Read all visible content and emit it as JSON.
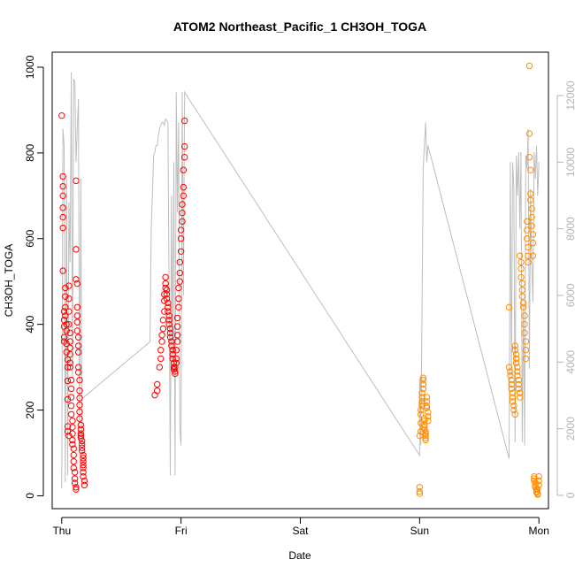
{
  "chart_data": {
    "type": "scatter",
    "title": "ATOM2 Northeast_Pacific_1 CH3OH_TOGA",
    "xlabel": "Date",
    "ylabel": "CH3OH_TOGA",
    "x_unit": "days",
    "xlim": [
      -0.08,
      4.08
    ],
    "ylim": [
      -30,
      1035
    ],
    "x_ticks": [
      {
        "value": 0,
        "label": "Thu"
      },
      {
        "value": 1,
        "label": "Fri"
      },
      {
        "value": 2,
        "label": "Sat"
      },
      {
        "value": 3,
        "label": "Sun"
      },
      {
        "value": 4,
        "label": "Mon"
      }
    ],
    "y_ticks": [
      0,
      200,
      400,
      600,
      800,
      1000
    ],
    "y2_lim": [
      -400,
      13300
    ],
    "y2_ticks": [
      0,
      2000,
      4000,
      6000,
      8000,
      10000,
      12000
    ],
    "grid": false,
    "colors": {
      "series_red": "#ff0000",
      "series_orange": "#ff8c00",
      "altitude_line": "#bebebe"
    },
    "series": [
      {
        "color": "#ff0000",
        "x": [
          0.0,
          0.01,
          0.01,
          0.01,
          0.01,
          0.01,
          0.01,
          0.01,
          0.02,
          0.02,
          0.02,
          0.02,
          0.02,
          0.03,
          0.03,
          0.03,
          0.03,
          0.04,
          0.04,
          0.04,
          0.04,
          0.05,
          0.05,
          0.05,
          0.05,
          0.05,
          0.05,
          0.06,
          0.06,
          0.06,
          0.06,
          0.06,
          0.07,
          0.07,
          0.07,
          0.07,
          0.07,
          0.07,
          0.08,
          0.08,
          0.08,
          0.08,
          0.08,
          0.09,
          0.09,
          0.09,
          0.09,
          0.09,
          0.1,
          0.1,
          0.1,
          0.1,
          0.11,
          0.11,
          0.11,
          0.12,
          0.12,
          0.12,
          0.12,
          0.12,
          0.13,
          0.13,
          0.13,
          0.13,
          0.13,
          0.14,
          0.14,
          0.14,
          0.14,
          0.14,
          0.15,
          0.15,
          0.15,
          0.15,
          0.15,
          0.15,
          0.16,
          0.16,
          0.16,
          0.16,
          0.16,
          0.17,
          0.17,
          0.17,
          0.17,
          0.18,
          0.18,
          0.18,
          0.18,
          0.18,
          0.18,
          0.18,
          0.19,
          0.19,
          0.78,
          0.8,
          0.8,
          0.82,
          0.83,
          0.83,
          0.84,
          0.84,
          0.85,
          0.85,
          0.86,
          0.86,
          0.86,
          0.87,
          0.87,
          0.87,
          0.88,
          0.88,
          0.88,
          0.89,
          0.89,
          0.89,
          0.9,
          0.9,
          0.9,
          0.91,
          0.91,
          0.91,
          0.92,
          0.92,
          0.93,
          0.93,
          0.93,
          0.94,
          0.94,
          0.94,
          0.95,
          0.95,
          0.95,
          0.96,
          0.96,
          0.96,
          0.97,
          0.97,
          0.97,
          0.97,
          0.98,
          0.98,
          0.98,
          0.99,
          0.99,
          0.99,
          1.0,
          1.0,
          1.0,
          1.01,
          1.01,
          1.01,
          1.02,
          1.02,
          1.02,
          1.03,
          1.03,
          1.03
        ],
        "y": [
          887,
          745,
          722,
          700,
          672,
          650,
          625,
          525,
          410,
          430,
          395,
          370,
          360,
          485,
          465,
          440,
          420,
          400,
          385,
          355,
          335,
          318,
          300,
          268,
          225,
          162,
          150,
          140,
          490,
          460,
          430,
          400,
          380,
          360,
          345,
          330,
          310,
          300,
          270,
          250,
          230,
          210,
          190,
          175,
          160,
          145,
          130,
          120,
          110,
          95,
          80,
          65,
          55,
          40,
          30,
          20,
          15,
          735,
          575,
          505,
          495,
          440,
          420,
          405,
          385,
          370,
          350,
          335,
          300,
          288,
          270,
          245,
          228,
          212,
          196,
          180,
          165,
          155,
          145,
          140,
          135,
          128,
          120,
          112,
          105,
          95,
          88,
          80,
          72,
          65,
          55,
          45,
          35,
          25,
          235,
          245,
          260,
          300,
          320,
          340,
          360,
          375,
          390,
          410,
          430,
          455,
          470,
          485,
          510,
          495,
          480,
          470,
          460,
          450,
          440,
          430,
          420,
          410,
          400,
          390,
          380,
          370,
          360,
          350,
          340,
          330,
          320,
          310,
          300,
          295,
          290,
          285,
          300,
          310,
          320,
          340,
          360,
          375,
          395,
          415,
          440,
          460,
          485,
          500,
          520,
          545,
          570,
          600,
          620,
          640,
          660,
          680,
          700,
          720,
          760,
          790,
          815,
          875
        ],
        "note": "y values estimated from scatter"
      },
      {
        "color": "#ff8c00",
        "x": [
          3.0,
          3.0,
          3.0,
          3.0,
          3.01,
          3.01,
          3.01,
          3.01,
          3.02,
          3.02,
          3.02,
          3.02,
          3.02,
          3.03,
          3.03,
          3.03,
          3.03,
          3.04,
          3.04,
          3.04,
          3.04,
          3.04,
          3.05,
          3.05,
          3.05,
          3.05,
          3.05,
          3.06,
          3.06,
          3.06,
          3.06,
          3.07,
          3.07,
          3.07,
          3.75,
          3.75,
          3.76,
          3.76,
          3.77,
          3.77,
          3.77,
          3.78,
          3.78,
          3.78,
          3.79,
          3.79,
          3.8,
          3.8,
          3.8,
          3.81,
          3.81,
          3.81,
          3.82,
          3.82,
          3.82,
          3.83,
          3.83,
          3.83,
          3.84,
          3.84,
          3.84,
          3.85,
          3.85,
          3.85,
          3.86,
          3.86,
          3.86,
          3.87,
          3.87,
          3.88,
          3.88,
          3.88,
          3.89,
          3.89,
          3.89,
          3.9,
          3.9,
          3.9,
          3.91,
          3.91,
          3.91,
          3.92,
          3.92,
          3.92,
          3.93,
          3.93,
          3.93,
          3.94,
          3.94,
          3.94,
          3.95,
          3.95,
          3.95,
          3.96,
          3.96,
          3.96,
          3.97,
          3.97,
          3.97,
          3.98,
          3.98,
          3.98,
          3.99,
          3.99,
          3.99,
          4.0,
          4.0,
          4.0
        ],
        "y": [
          5,
          10,
          20,
          140,
          150,
          170,
          190,
          200,
          210,
          215,
          220,
          230,
          240,
          250,
          260,
          270,
          275,
          180,
          175,
          165,
          160,
          155,
          150,
          145,
          140,
          135,
          130,
          230,
          220,
          210,
          205,
          195,
          185,
          175,
          440,
          300,
          290,
          280,
          270,
          260,
          250,
          240,
          230,
          220,
          210,
          200,
          190,
          350,
          340,
          330,
          320,
          310,
          300,
          290,
          280,
          270,
          260,
          250,
          240,
          230,
          560,
          545,
          530,
          510,
          495,
          480,
          465,
          450,
          440,
          420,
          400,
          380,
          360,
          340,
          320,
          640,
          620,
          600,
          580,
          560,
          545,
          1003,
          845,
          790,
          760,
          705,
          690,
          670,
          650,
          630,
          610,
          590,
          560,
          45,
          40,
          35,
          30,
          25,
          20,
          15,
          10,
          8,
          5,
          3,
          15,
          25,
          35,
          45
        ],
        "note": "y values estimated from scatter"
      }
    ],
    "altitude_line": {
      "color": "#bebebe",
      "axis": "right",
      "x": [
        0.0,
        0.01,
        0.02,
        0.03,
        0.04,
        0.05,
        0.06,
        0.07,
        0.08,
        0.09,
        0.1,
        0.11,
        0.12,
        0.13,
        0.14,
        0.15,
        0.16,
        0.17,
        0.17,
        0.18,
        0.19,
        0.2,
        0.21,
        0.22,
        0.23,
        0.24,
        0.25,
        0.26,
        0.27,
        0.28,
        0.29,
        0.3,
        0.31,
        0.32,
        0.33,
        0.34,
        0.35,
        0.36,
        0.37,
        0.38,
        0.39,
        0.4,
        0.41,
        0.42,
        0.43,
        0.44,
        0.45,
        0.46,
        0.47,
        0.48,
        0.49,
        0.5,
        0.51,
        0.52,
        0.53,
        0.54,
        0.55,
        0.56,
        0.57,
        0.58,
        0.59,
        0.6,
        0.61,
        0.62,
        0.63,
        0.64,
        0.65,
        0.66,
        0.67,
        0.68,
        0.69,
        0.7,
        0.71,
        0.72,
        0.73,
        0.74,
        0.75,
        0.76,
        0.77,
        0.78,
        0.79,
        0.8,
        0.81,
        0.82,
        0.83,
        0.84,
        0.85,
        0.86,
        0.87,
        0.88,
        0.89,
        0.9,
        0.91,
        0.92,
        0.93,
        0.94,
        0.95,
        0.96,
        0.97,
        0.98,
        0.99,
        1.0,
        1.01,
        1.02,
        1.03,
        3.0,
        3.0,
        3.01,
        3.02,
        3.03,
        3.04,
        3.05,
        3.06,
        3.07,
        3.75,
        3.76,
        3.77,
        3.78,
        3.79,
        3.8,
        3.81,
        3.82,
        3.83,
        3.84,
        3.85,
        3.86,
        3.87,
        3.88,
        3.89,
        3.9,
        3.91,
        3.92,
        3.93,
        3.94,
        3.95,
        3.96,
        3.97,
        3.98,
        3.99,
        4.0
      ],
      "y": [
        200,
        11000,
        10500,
        400,
        9500,
        600,
        8800,
        7000,
        12700,
        3500,
        12500,
        12400,
        10000,
        11000,
        11900,
        1700,
        9500,
        1500,
        2900,
        2930,
        2960,
        2990,
        3020,
        3050,
        3080,
        3110,
        3140,
        3170,
        3200,
        3230,
        3260,
        3290,
        3320,
        3350,
        3380,
        3410,
        3440,
        3470,
        3500,
        3530,
        3560,
        3590,
        3620,
        3650,
        3680,
        3710,
        3740,
        3770,
        3800,
        3830,
        3860,
        3890,
        3920,
        3950,
        3980,
        4010,
        4040,
        4070,
        4100,
        4130,
        4160,
        4190,
        4220,
        4250,
        4280,
        4310,
        4340,
        4370,
        4400,
        4430,
        4460,
        4490,
        4520,
        4550,
        4580,
        4610,
        8000,
        9000,
        10200,
        10300,
        10500,
        10500,
        10800,
        11000,
        11100,
        11200,
        11200,
        11100,
        11300,
        11250,
        11200,
        6000,
        600,
        9000,
        4000,
        10000,
        600,
        12100,
        8500,
        11200,
        2000,
        1500,
        12100,
        6000,
        12100,
        1200,
        3500,
        1500,
        5500,
        9800,
        10500,
        11200,
        10000,
        10500,
        1100,
        10000,
        3500,
        10000,
        9200,
        1600,
        10200,
        9000,
        10300,
        8000,
        10300,
        1600,
        5700,
        1500,
        10200,
        9800,
        11000,
        3800,
        9200,
        7000,
        5800,
        10300,
        9500,
        10500,
        9000,
        10000
      ],
      "note": "approximate altitude trace (right axis)"
    }
  }
}
